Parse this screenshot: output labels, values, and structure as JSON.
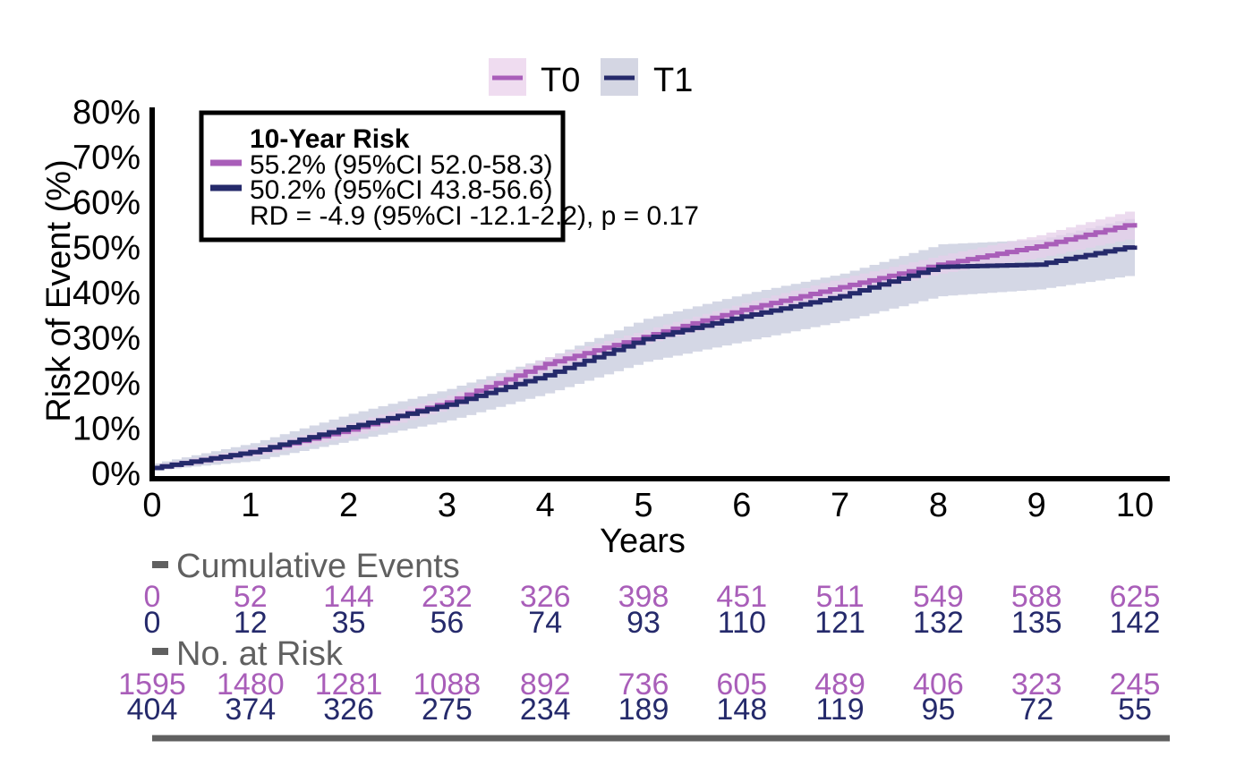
{
  "chart_data": {
    "type": "line",
    "subtype": "cumulative-incidence-step",
    "xlabel": "Years",
    "ylabel": "Risk of Event (%)",
    "xlim": [
      0,
      10
    ],
    "ylim": [
      0,
      80
    ],
    "x_ticks": [
      0,
      1,
      2,
      3,
      4,
      5,
      6,
      7,
      8,
      9,
      10
    ],
    "x_tick_labels": [
      "0",
      "1",
      "2",
      "3",
      "4",
      "5",
      "6",
      "7",
      "8",
      "9",
      "10"
    ],
    "y_ticks": [
      0,
      10,
      20,
      30,
      40,
      50,
      60,
      70,
      80
    ],
    "y_tick_labels": [
      "0%",
      "10%",
      "20%",
      "30%",
      "40%",
      "50%",
      "60%",
      "70%",
      "80%"
    ],
    "grid": false,
    "legend": {
      "placement": "top-center",
      "entries": [
        {
          "label": "T0",
          "color": "#a95eb9",
          "fill": "#efdcf0"
        },
        {
          "label": "T1",
          "color": "#252a6b",
          "fill": "#d4d6e3"
        }
      ]
    },
    "annotation": {
      "title": "10-Year Risk",
      "lines": [
        {
          "text": "55.2% (95%CI 52.0-58.3)",
          "color": "#a95eb9"
        },
        {
          "text": "50.2% (95%CI 43.8-56.6)",
          "color": "#252a6b"
        },
        {
          "text": "RD = -4.9 (95%CI -12.1-2.2), p = 0.17",
          "color": null
        }
      ]
    },
    "x": [
      0,
      1,
      2,
      3,
      4,
      5,
      6,
      7,
      8,
      9,
      10
    ],
    "series": [
      {
        "name": "T0",
        "color": "#a95eb9",
        "ci_color": "#e6cfe9",
        "values": [
          1.0,
          4.5,
          9.5,
          15.5,
          24.0,
          30.0,
          36.0,
          41.0,
          46.0,
          50.0,
          55.2
        ],
        "ci_lower": [
          0.5,
          3.5,
          8.0,
          14.0,
          22.5,
          28.5,
          34.0,
          39.0,
          44.0,
          47.5,
          52.0
        ],
        "ci_upper": [
          1.5,
          5.5,
          11.0,
          17.0,
          25.5,
          31.5,
          37.5,
          43.0,
          48.0,
          52.5,
          58.3
        ]
      },
      {
        "name": "T1",
        "color": "#252a6b",
        "ci_color": "#cdd0e0",
        "values": [
          1.0,
          4.5,
          10.0,
          15.0,
          21.5,
          29.5,
          34.5,
          39.0,
          45.5,
          46.0,
          50.2
        ],
        "ci_lower": [
          0.5,
          2.5,
          7.0,
          11.5,
          17.5,
          24.5,
          29.0,
          33.5,
          39.0,
          40.5,
          43.8
        ],
        "ci_upper": [
          2.0,
          6.5,
          13.0,
          18.5,
          25.5,
          34.0,
          39.5,
          44.0,
          50.5,
          51.5,
          56.6
        ]
      }
    ],
    "risk_tables": [
      {
        "title": "Cumulative Events",
        "rows": [
          {
            "group": "T0",
            "color": "#a95eb9",
            "values": [
              "0",
              "52",
              "144",
              "232",
              "326",
              "398",
              "451",
              "511",
              "549",
              "588",
              "625"
            ]
          },
          {
            "group": "T1",
            "color": "#252a6b",
            "values": [
              "0",
              "12",
              "35",
              "56",
              "74",
              "93",
              "110",
              "121",
              "132",
              "135",
              "142"
            ]
          }
        ]
      },
      {
        "title": "No. at Risk",
        "rows": [
          {
            "group": "T0",
            "color": "#a95eb9",
            "values": [
              "1595",
              "1480",
              "1281",
              "1088",
              "892",
              "736",
              "605",
              "489",
              "406",
              "323",
              "245"
            ]
          },
          {
            "group": "T1",
            "color": "#252a6b",
            "values": [
              "404",
              "374",
              "326",
              "275",
              "234",
              "189",
              "148",
              "119",
              "95",
              "72",
              "55"
            ]
          }
        ]
      }
    ]
  }
}
